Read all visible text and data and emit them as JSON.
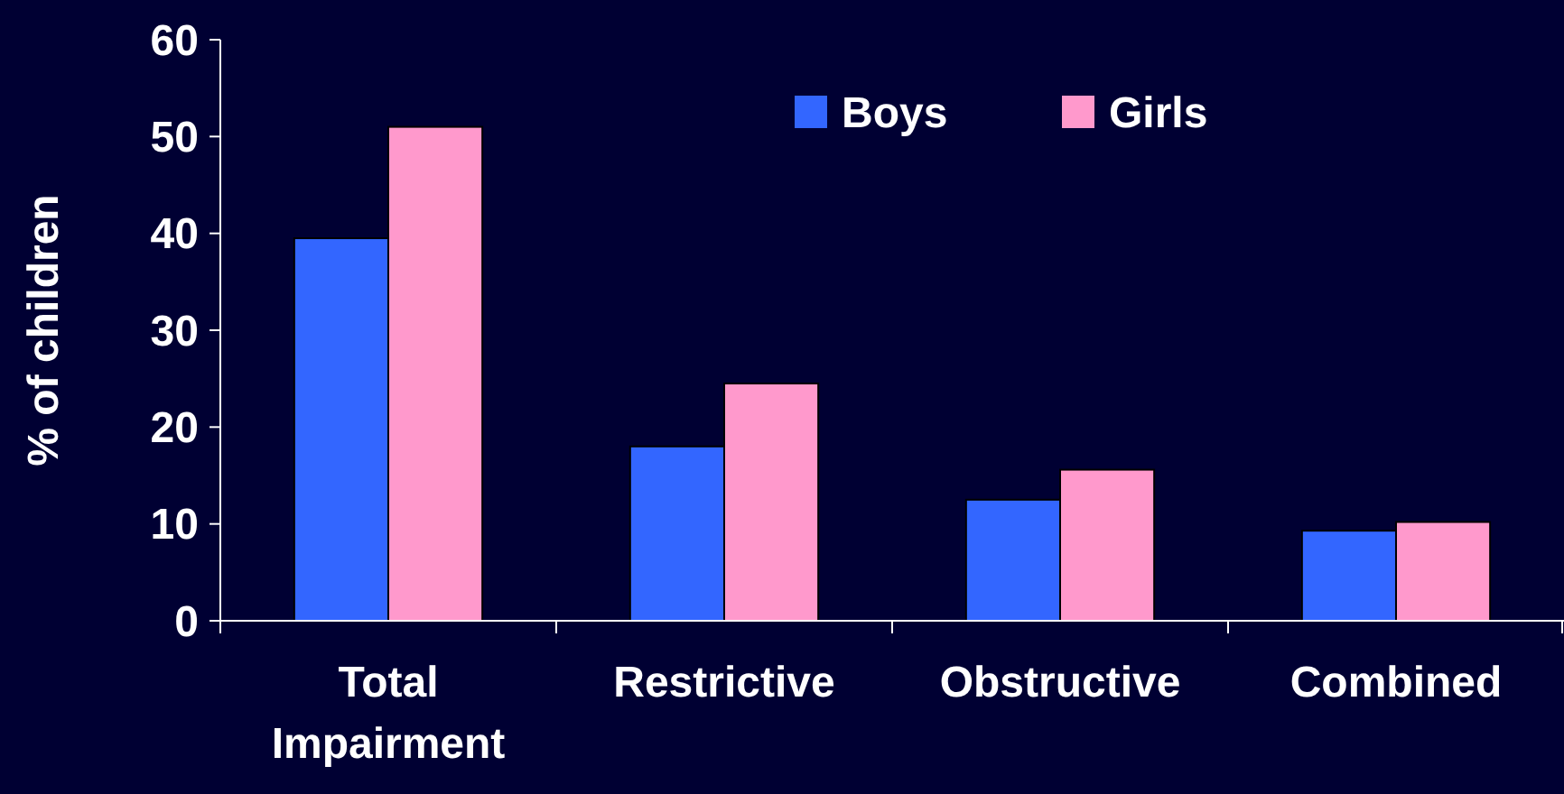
{
  "chart_data": {
    "type": "bar",
    "ylabel": "% of children",
    "categories": [
      "Total Impairment",
      "Restrictive",
      "Obstructive",
      "Combined"
    ],
    "series": [
      {
        "name": "Boys",
        "color": "#3366ff",
        "values": [
          39.5,
          18,
          12.5,
          9.3
        ]
      },
      {
        "name": "Girls",
        "color": "#ff99cc",
        "values": [
          51,
          24.5,
          15.6,
          10.2
        ]
      }
    ],
    "ylim": [
      0,
      60
    ],
    "yticks": [
      0,
      10,
      20,
      30,
      40,
      50,
      60
    ],
    "grid": false,
    "legend": "top"
  }
}
